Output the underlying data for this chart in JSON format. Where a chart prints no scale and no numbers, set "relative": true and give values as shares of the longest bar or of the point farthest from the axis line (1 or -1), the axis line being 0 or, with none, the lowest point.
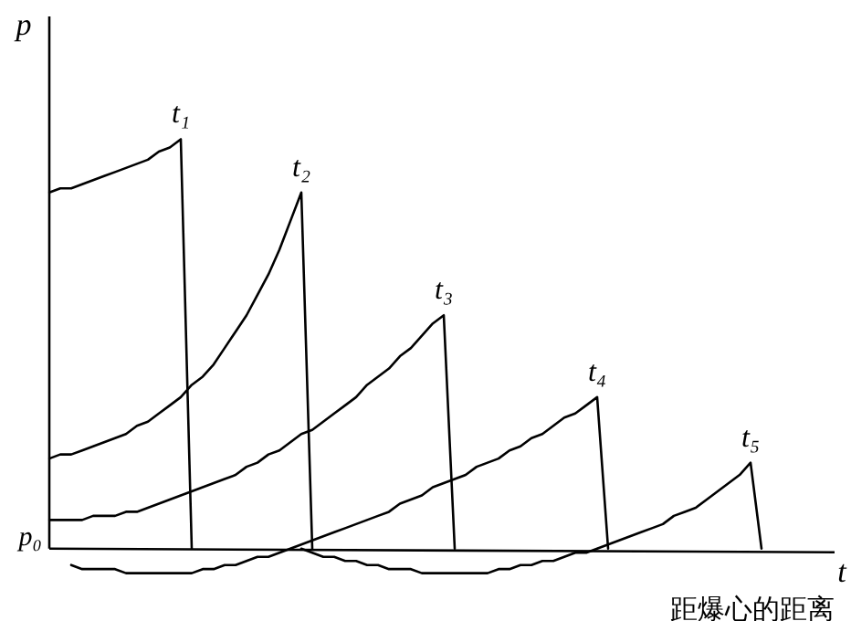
{
  "chart_data": {
    "type": "line",
    "relative": true,
    "ylabel": "p",
    "xlabel": "t",
    "annotations": [
      "p₀",
      "距爆心的距离"
    ],
    "legend": false,
    "marker": "none",
    "line_style": "solid",
    "categories": [
      null,
      null,
      null,
      null,
      null,
      null,
      null,
      null,
      null,
      null,
      null,
      null,
      null,
      null,
      null,
      null,
      null,
      null,
      null,
      null,
      null,
      null,
      null,
      null,
      null,
      null,
      null,
      null,
      null,
      null,
      null,
      null,
      null,
      null,
      null,
      null,
      null,
      null,
      null,
      null,
      null,
      null,
      null,
      null,
      null,
      null,
      null,
      null,
      null,
      null,
      null,
      null,
      null,
      null,
      null,
      null,
      null,
      null,
      null,
      null,
      null,
      null,
      null,
      null,
      null,
      null,
      null,
      null,
      null,
      null,
      null
    ],
    "series": [
      {
        "name": "t₁",
        "color": "#000000",
        "values": [
          0.87,
          0.88,
          0.88,
          0.89,
          0.9,
          0.91,
          0.92,
          0.93,
          0.94,
          0.95,
          0.97,
          0.98,
          1.0,
          0,
          null,
          null,
          null,
          null,
          null,
          null,
          null,
          null,
          null,
          null,
          null,
          null,
          null,
          null,
          null,
          null,
          null,
          null,
          null,
          null,
          null,
          null,
          null,
          null,
          null,
          null,
          null,
          null,
          null,
          null,
          null,
          null,
          null,
          null,
          null,
          null,
          null,
          null,
          null,
          null,
          null,
          null,
          null,
          null,
          null,
          null,
          null,
          null,
          null,
          null,
          null,
          null,
          null,
          null,
          null,
          null,
          null
        ]
      },
      {
        "name": "t₂",
        "color": "#000000",
        "values": [
          0.22,
          0.23,
          0.23,
          0.24,
          0.25,
          0.26,
          0.27,
          0.28,
          0.3,
          0.31,
          0.33,
          0.35,
          0.37,
          0.4,
          0.42,
          0.45,
          0.49,
          0.53,
          0.57,
          0.62,
          0.67,
          0.73,
          0.8,
          0.87,
          0,
          null,
          null,
          null,
          null,
          null,
          null,
          null,
          null,
          null,
          null,
          null,
          null,
          null,
          null,
          null,
          null,
          null,
          null,
          null,
          null,
          null,
          null,
          null,
          null,
          null,
          null,
          null,
          null,
          null,
          null,
          null,
          null,
          null,
          null,
          null,
          null,
          null,
          null,
          null,
          null,
          null,
          null,
          null,
          null,
          null,
          null
        ]
      },
      {
        "name": "t₃",
        "color": "#000000",
        "values": [
          0.07,
          0.07,
          0.07,
          0.07,
          0.08,
          0.08,
          0.08,
          0.09,
          0.09,
          0.1,
          0.11,
          0.12,
          0.13,
          0.14,
          0.15,
          0.16,
          0.17,
          0.18,
          0.2,
          0.21,
          0.23,
          0.24,
          0.26,
          0.28,
          0.29,
          0.31,
          0.33,
          0.35,
          0.37,
          0.4,
          0.42,
          0.44,
          0.47,
          0.49,
          0.52,
          0.55,
          0.57,
          0,
          null,
          null,
          null,
          null,
          null,
          null,
          null,
          null,
          null,
          null,
          null,
          null,
          null,
          null,
          null,
          null,
          null,
          null,
          null,
          null,
          null,
          null,
          null,
          null,
          null,
          null,
          null,
          null,
          null,
          null,
          null,
          null,
          null
        ]
      },
      {
        "name": "t₄",
        "color": "#000000",
        "values": [
          null,
          null,
          -0.04,
          -0.05,
          -0.05,
          -0.05,
          -0.05,
          -0.06,
          -0.06,
          -0.06,
          -0.06,
          -0.06,
          -0.06,
          -0.06,
          -0.05,
          -0.05,
          -0.04,
          -0.04,
          -0.03,
          -0.02,
          -0.02,
          -0.01,
          0,
          0.01,
          0.02,
          0.03,
          0.04,
          0.05,
          0.06,
          0.07,
          0.08,
          0.09,
          0.11,
          0.12,
          0.13,
          0.15,
          0.16,
          0.17,
          0.18,
          0.2,
          0.21,
          0.22,
          0.24,
          0.25,
          0.27,
          0.28,
          0.3,
          0.32,
          0.33,
          0.35,
          0.37,
          0,
          null,
          null,
          null,
          null,
          null,
          null,
          null,
          null,
          null,
          null,
          null,
          null,
          null,
          null,
          null,
          null,
          null,
          null,
          null
        ]
      },
      {
        "name": "t₅",
        "color": "#000000",
        "values": [
          null,
          null,
          null,
          null,
          null,
          null,
          null,
          null,
          null,
          null,
          null,
          null,
          null,
          null,
          null,
          null,
          null,
          null,
          null,
          null,
          null,
          null,
          null,
          0,
          -0.01,
          -0.02,
          -0.02,
          -0.03,
          -0.03,
          -0.04,
          -0.04,
          -0.05,
          -0.05,
          -0.05,
          -0.06,
          -0.06,
          -0.06,
          -0.06,
          -0.06,
          -0.06,
          -0.06,
          -0.05,
          -0.05,
          -0.04,
          -0.04,
          -0.03,
          -0.03,
          -0.02,
          -0.01,
          -0.01,
          0,
          0.01,
          0.02,
          0.03,
          0.04,
          0.05,
          0.06,
          0.08,
          0.09,
          0.1,
          0.12,
          0.14,
          0.16,
          0.18,
          0.21,
          0,
          null,
          null,
          null,
          null,
          null
        ]
      }
    ]
  }
}
